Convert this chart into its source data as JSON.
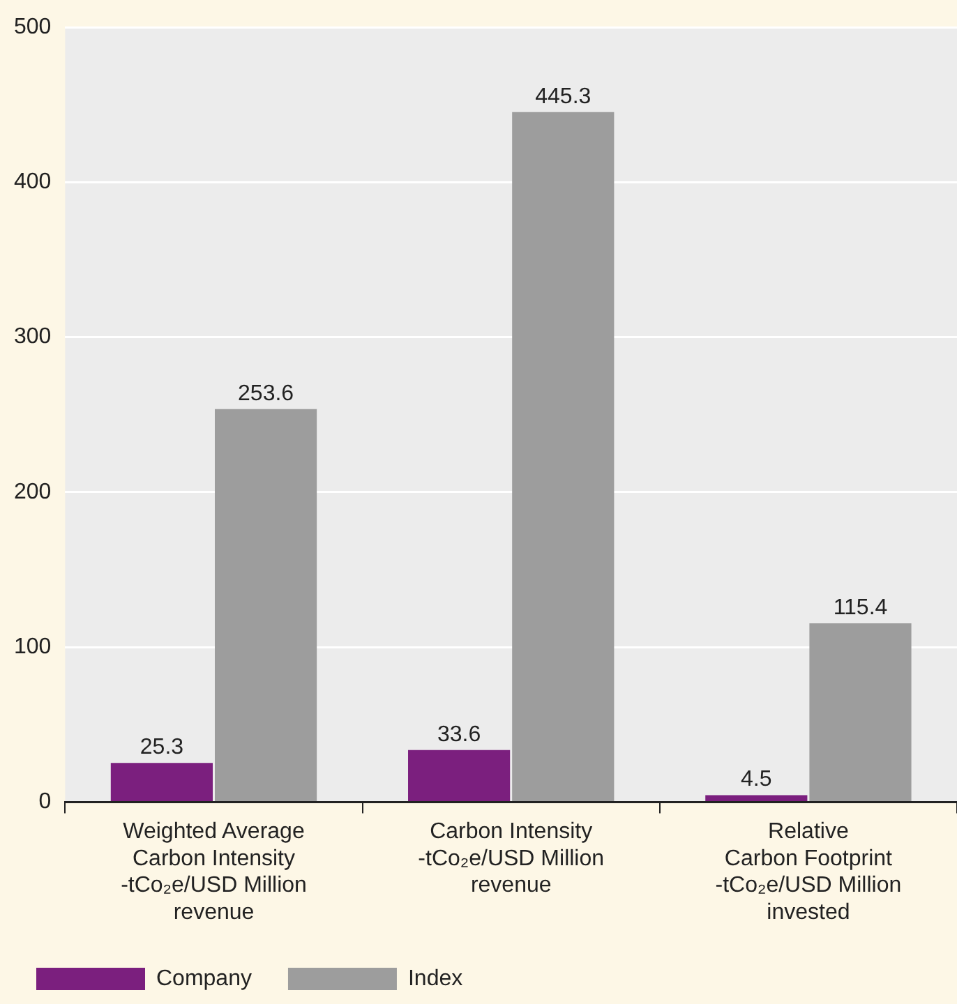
{
  "chart_data": {
    "type": "bar",
    "categories": [
      "Weighted Average\nCarbon Intensity\n-tCo₂e/USD Million\nrevenue",
      "Carbon Intensity\n-tCo₂e/USD Million\nrevenue",
      "Relative\nCarbon Footprint\n-tCo₂e/USD Million\ninvested"
    ],
    "series": [
      {
        "name": "Company",
        "color": "#7b1f7e",
        "values": [
          25.3,
          33.6,
          4.5
        ]
      },
      {
        "name": "Index",
        "color": "#9d9d9d",
        "values": [
          253.6,
          445.3,
          115.4
        ]
      }
    ],
    "ylim": [
      0,
      500
    ],
    "yticks": [
      0,
      100,
      200,
      300,
      400,
      500
    ],
    "grid": "y",
    "legend": "bottom left",
    "data_labels": true
  }
}
